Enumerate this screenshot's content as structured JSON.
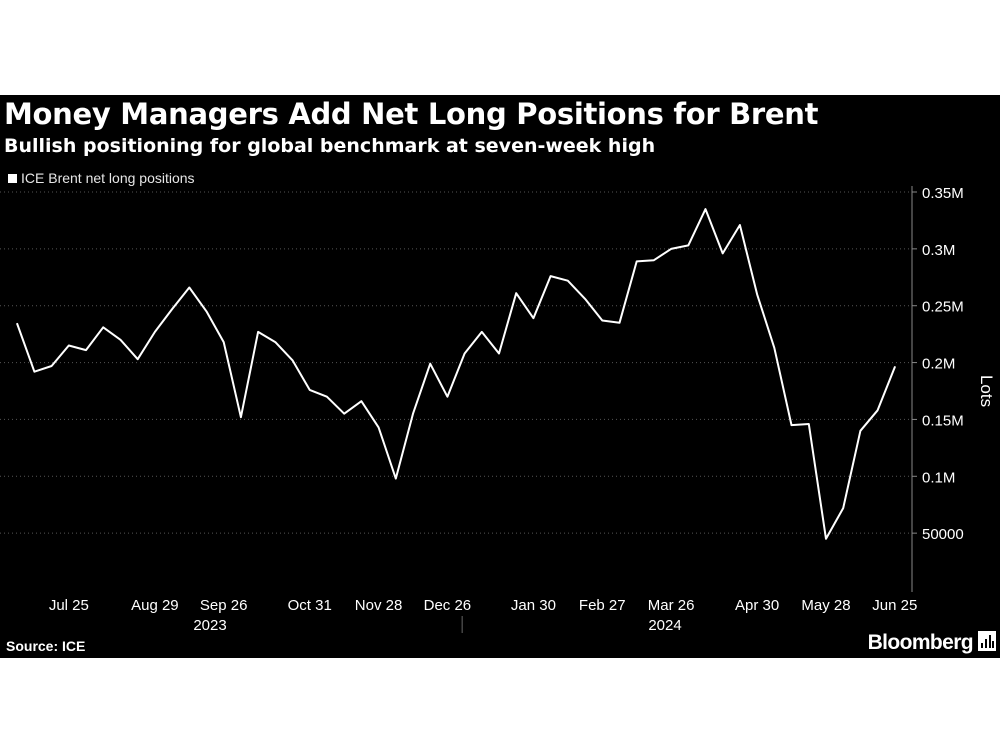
{
  "header": {
    "title": "Money Managers Add Net Long Positions for Brent",
    "subtitle": "Bullish positioning for global benchmark at seven-week high"
  },
  "footer": {
    "source": "Source: ICE",
    "brand": "Bloomberg"
  },
  "colors": {
    "background": "#000000",
    "line": "#ffffff",
    "text": "#ffffff",
    "grid": "#555555"
  },
  "chart_data": {
    "type": "line",
    "title": "Money Managers Add Net Long Positions for Brent",
    "subtitle": "Bullish positioning for global benchmark at seven-week high",
    "ylabel": "Lots",
    "ylim": [
      0,
      350000
    ],
    "yticks": [
      {
        "value": 50000,
        "label": "50000"
      },
      {
        "value": 100000,
        "label": "0.1M"
      },
      {
        "value": 150000,
        "label": "0.15M"
      },
      {
        "value": 200000,
        "label": "0.2M"
      },
      {
        "value": 250000,
        "label": "0.25M"
      },
      {
        "value": 300000,
        "label": "0.3M"
      },
      {
        "value": 350000,
        "label": "0.35M"
      }
    ],
    "xticks": [
      "Jul 25",
      "Aug 29",
      "Sep 26",
      "Oct 31",
      "Nov 28",
      "Dec 26",
      "Jan 30",
      "Feb 27",
      "Mar 26",
      "Apr 30",
      "May 28",
      "Jun 25"
    ],
    "year_labels": [
      "2023",
      "2024"
    ],
    "grid": "horizontal dotted",
    "legend_position": "top-left",
    "series": [
      {
        "name": "ICE Brent net long positions",
        "x": [
          "2023-07-04",
          "2023-07-11",
          "2023-07-18",
          "2023-07-25",
          "2023-08-01",
          "2023-08-08",
          "2023-08-15",
          "2023-08-22",
          "2023-08-29",
          "2023-09-05",
          "2023-09-12",
          "2023-09-19",
          "2023-09-26",
          "2023-10-03",
          "2023-10-10",
          "2023-10-17",
          "2023-10-24",
          "2023-10-31",
          "2023-11-07",
          "2023-11-14",
          "2023-11-21",
          "2023-11-28",
          "2023-12-05",
          "2023-12-12",
          "2023-12-19",
          "2023-12-26",
          "2024-01-02",
          "2024-01-09",
          "2024-01-16",
          "2024-01-23",
          "2024-01-30",
          "2024-02-06",
          "2024-02-13",
          "2024-02-20",
          "2024-02-27",
          "2024-03-05",
          "2024-03-12",
          "2024-03-19",
          "2024-03-26",
          "2024-04-02",
          "2024-04-09",
          "2024-04-16",
          "2024-04-23",
          "2024-04-30",
          "2024-05-07",
          "2024-05-14",
          "2024-05-21",
          "2024-05-28",
          "2024-06-04",
          "2024-06-11",
          "2024-06-18",
          "2024-06-25",
          "2024-07-02"
        ],
        "values": [
          234000,
          192000,
          197000,
          215000,
          211000,
          231000,
          220000,
          203000,
          227000,
          247000,
          266000,
          245000,
          218000,
          152000,
          227000,
          218000,
          202000,
          176000,
          170000,
          155000,
          166000,
          143000,
          98000,
          155000,
          199000,
          170000,
          208000,
          227000,
          208000,
          261000,
          239000,
          276000,
          272000,
          256000,
          237000,
          235000,
          289000,
          290000,
          300000,
          303000,
          335000,
          296000,
          321000,
          260000,
          213000,
          145000,
          146000,
          45000,
          72000,
          140000,
          158000,
          196000,
          null
        ]
      }
    ]
  }
}
